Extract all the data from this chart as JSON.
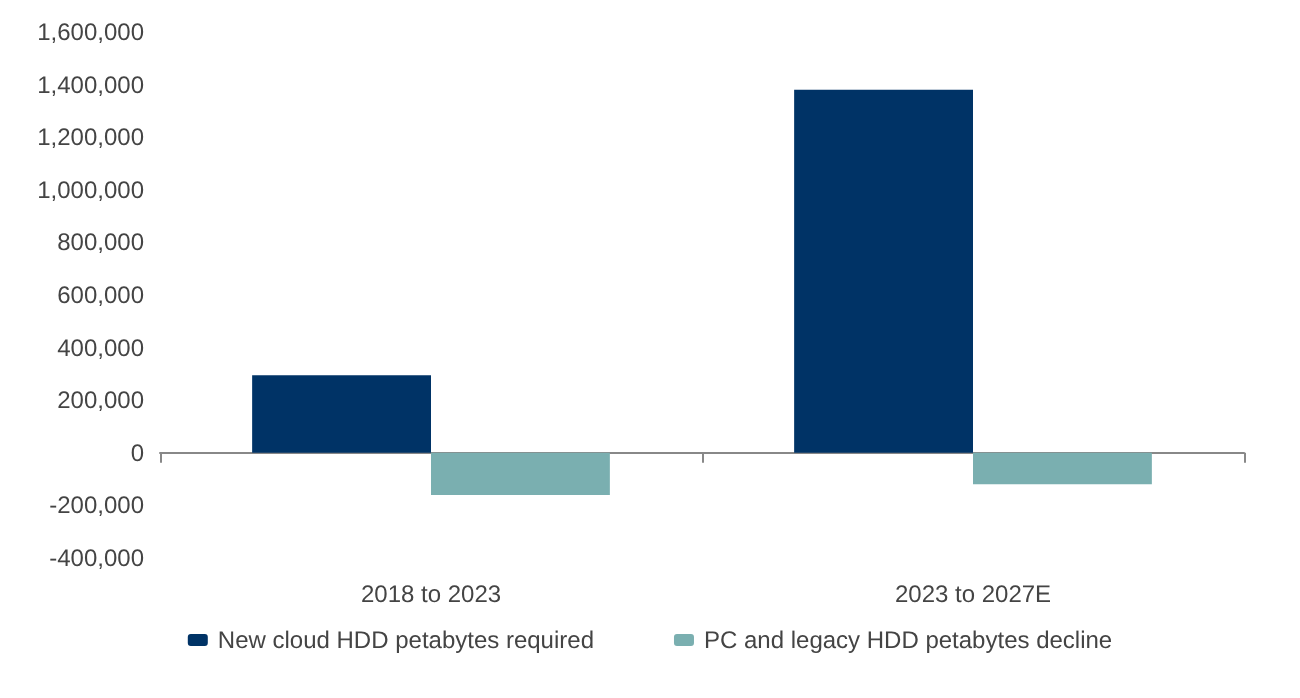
{
  "chart_data": {
    "type": "bar",
    "categories": [
      "2018 to 2023",
      "2023 to 2027E"
    ],
    "series": [
      {
        "name": "New cloud HDD petabytes required",
        "color": "#003366",
        "values": [
          295000,
          1380000
        ]
      },
      {
        "name": "PC and legacy HDD petabytes decline",
        "color": "#7aafb0",
        "values": [
          -160000,
          -120000
        ]
      }
    ],
    "ylim": [
      -400000,
      1600000
    ],
    "yticks": [
      {
        "value": -400000,
        "label": "-400,000"
      },
      {
        "value": -200000,
        "label": "-200,000"
      },
      0,
      {
        "value": 200000,
        "label": "200,000"
      },
      {
        "value": 400000,
        "label": "400,000"
      },
      {
        "value": 600000,
        "label": "600,000"
      },
      {
        "value": 800000,
        "label": "800,000"
      },
      {
        "value": 1000000,
        "label": "1,000,000"
      },
      {
        "value": 1200000,
        "label": "1,200,000"
      },
      {
        "value": 1400000,
        "label": "1,400,000"
      },
      {
        "value": 1600000,
        "label": "1,600,000"
      }
    ],
    "legend": "bottom"
  }
}
